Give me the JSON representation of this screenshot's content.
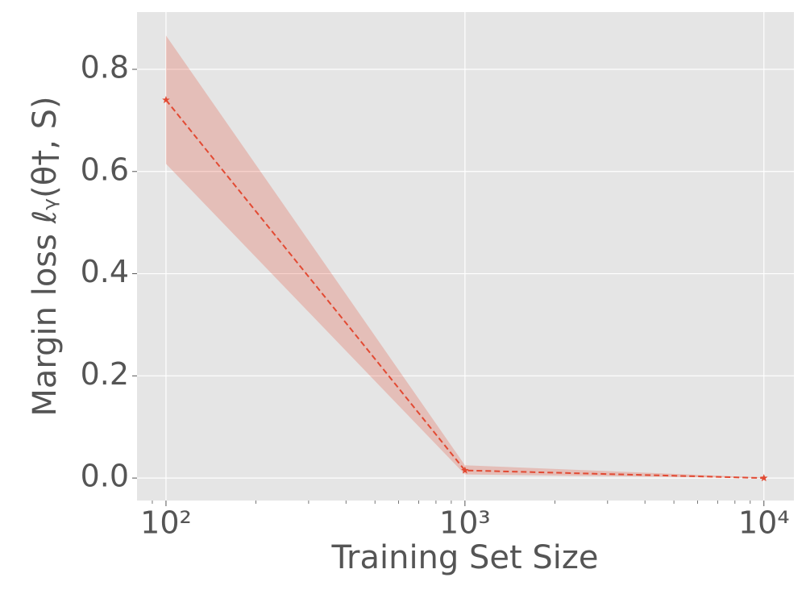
{
  "chart_data": {
    "type": "line",
    "xlabel": "Training Set Size",
    "ylabel": "Margin loss ℓᵧ(θ†, S)",
    "x": [
      100,
      1000,
      10000
    ],
    "series": [
      {
        "color": "#E24A33",
        "values": [
          0.74,
          0.015,
          0.0
        ],
        "lower": [
          0.615,
          0.007,
          0.0
        ],
        "upper": [
          0.866,
          0.025,
          0.001
        ]
      }
    ],
    "xscale": "log",
    "xlim": [
      80,
      12600
    ],
    "ylim": [
      -0.044,
      0.912
    ],
    "xticks": [
      {
        "value": 100,
        "label": "10²"
      },
      {
        "value": 1000,
        "label": "10³"
      },
      {
        "value": 10000,
        "label": "10⁴"
      }
    ],
    "yticks": [
      {
        "value": 0,
        "label": "0.0"
      },
      0.2,
      0.4,
      0.6,
      0.8
    ],
    "grid": true
  }
}
